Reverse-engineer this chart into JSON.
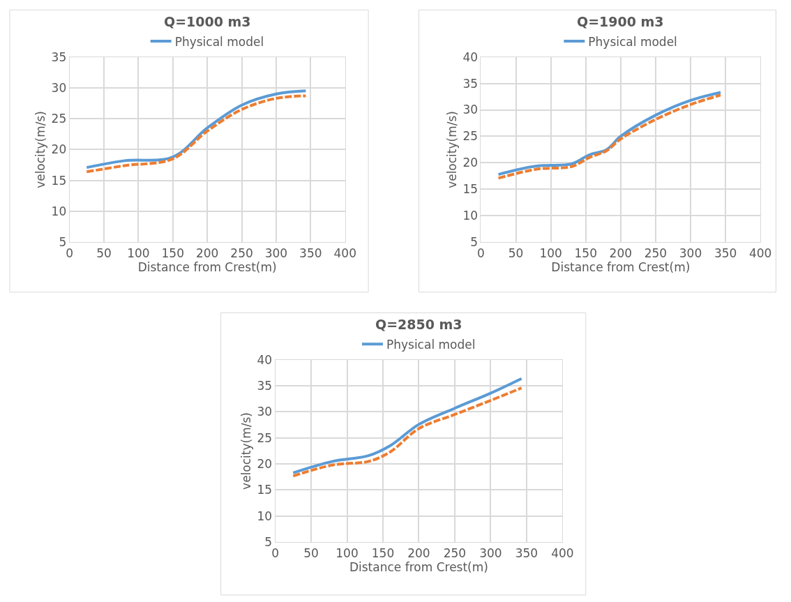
{
  "chart_data": [
    {
      "type": "line",
      "title": "Q=1000 m3",
      "xlabel": "Distance from Crest(m)",
      "ylabel": "velocity(m/s)",
      "xlim": [
        0,
        400
      ],
      "xticks": [
        0,
        50,
        100,
        150,
        200,
        250,
        300,
        350,
        400
      ],
      "ylim": [
        5,
        35
      ],
      "yticks": [
        5,
        10,
        15,
        20,
        25,
        30,
        35
      ],
      "grid": true,
      "legend": "top",
      "marker": "none",
      "series": [
        {
          "name": "Physical model",
          "color": "#5b9bd5",
          "line_style": "solid",
          "x": [
            25,
            80,
            150,
            200,
            250,
            300,
            343
          ],
          "values": [
            17.1,
            18.2,
            18.8,
            23.5,
            27.2,
            29.0,
            29.5
          ]
        },
        {
          "color": "#ed7d31",
          "line_style": "dashed",
          "x": [
            25,
            80,
            150,
            200,
            250,
            300,
            343
          ],
          "values": [
            16.4,
            17.4,
            18.5,
            23.0,
            26.5,
            28.3,
            28.7
          ]
        }
      ]
    },
    {
      "type": "line",
      "title": "Q=1900 m3",
      "xlabel": "Distance from Crest(m)",
      "ylabel": "velocity(m/s)",
      "xlim": [
        0,
        400
      ],
      "xticks": [
        0,
        50,
        100,
        150,
        200,
        250,
        300,
        350,
        400
      ],
      "ylim": [
        5,
        40
      ],
      "yticks": [
        5,
        10,
        15,
        20,
        25,
        30,
        35,
        40
      ],
      "grid": true,
      "legend": "top",
      "marker": "none",
      "series": [
        {
          "name": "Physical model",
          "color": "#5b9bd5",
          "line_style": "solid",
          "x": [
            25,
            80,
            130,
            155,
            180,
            200,
            250,
            300,
            343
          ],
          "values": [
            17.8,
            19.4,
            19.8,
            21.5,
            22.5,
            25.0,
            29.0,
            31.8,
            33.3
          ]
        },
        {
          "color": "#ed7d31",
          "line_style": "dashed",
          "x": [
            25,
            80,
            130,
            155,
            180,
            200,
            250,
            300,
            343
          ],
          "values": [
            17.1,
            18.8,
            19.3,
            21.0,
            22.3,
            24.5,
            28.2,
            31.0,
            32.8
          ]
        }
      ]
    },
    {
      "type": "line",
      "title": "Q=2850 m3",
      "xlabel": "Distance from Crest(m)",
      "ylabel": "velocity(m/s)",
      "xlim": [
        0,
        400
      ],
      "xticks": [
        0,
        50,
        100,
        150,
        200,
        250,
        300,
        350,
        400
      ],
      "ylim": [
        5,
        40
      ],
      "yticks": [
        5,
        10,
        15,
        20,
        25,
        30,
        35,
        40
      ],
      "grid": true,
      "legend": "top",
      "marker": "none",
      "series": [
        {
          "name": "Physical model",
          "color": "#5b9bd5",
          "line_style": "solid",
          "x": [
            25,
            80,
            130,
            160,
            200,
            250,
            300,
            343
          ],
          "values": [
            18.3,
            20.5,
            21.6,
            23.5,
            27.6,
            30.7,
            33.6,
            36.4
          ]
        },
        {
          "color": "#ed7d31",
          "line_style": "dashed",
          "x": [
            25,
            80,
            130,
            160,
            200,
            250,
            300,
            343
          ],
          "values": [
            17.7,
            19.8,
            20.5,
            22.3,
            26.8,
            29.5,
            32.2,
            34.6
          ]
        }
      ]
    }
  ]
}
